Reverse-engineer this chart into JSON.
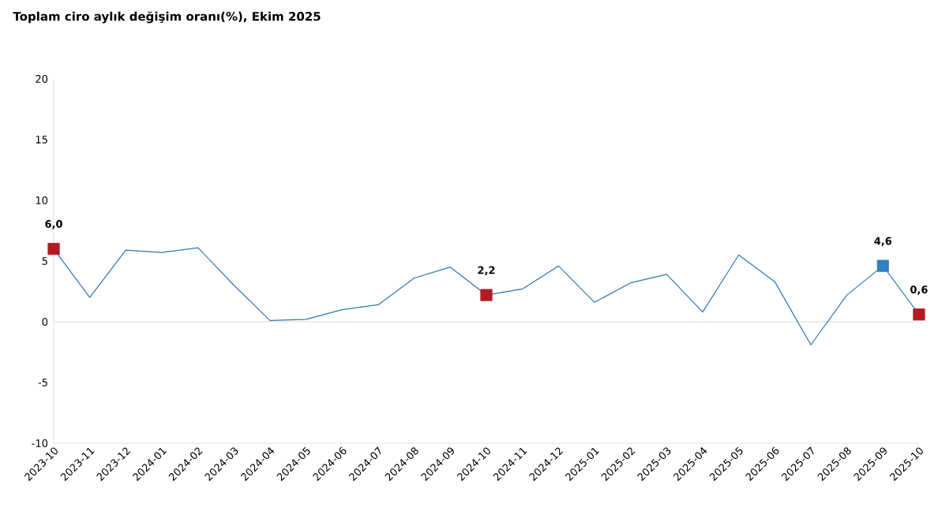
{
  "chart_data": {
    "type": "line",
    "title": "Toplam ciro aylık değişim oranı(%), Ekim 2025",
    "categories": [
      "2023-10",
      "2023-11",
      "2023-12",
      "2024-01",
      "2024-02",
      "2024-03",
      "2024-04",
      "2024-05",
      "2024-06",
      "2024-07",
      "2024-08",
      "2024-09",
      "2024-10",
      "2024-11",
      "2024-12",
      "2025-01",
      "2025-02",
      "2025-03",
      "2025-04",
      "2025-05",
      "2025-06",
      "2025-07",
      "2025-08",
      "2025-09",
      "2025-10"
    ],
    "series": [
      {
        "color": "#2e75b6",
        "values": [
          6.0,
          2.0,
          5.9,
          5.7,
          6.1,
          3.0,
          0.1,
          0.2,
          1.0,
          1.4,
          3.6,
          4.5,
          2.2,
          2.7,
          4.6,
          1.6,
          3.2,
          3.9,
          0.8,
          5.5,
          3.3,
          -1.9,
          2.2,
          4.6,
          0.6
        ],
        "colors": [
          "#b01c24",
          null,
          null,
          null,
          null,
          null,
          null,
          null,
          null,
          null,
          null,
          null,
          "#b01c24",
          null,
          null,
          null,
          null,
          null,
          null,
          null,
          null,
          null,
          null,
          "#3180bf",
          "#b01c24"
        ],
        "value_labels": [
          "6,0",
          null,
          null,
          null,
          null,
          null,
          null,
          null,
          null,
          null,
          null,
          null,
          "2,2",
          null,
          null,
          null,
          null,
          null,
          null,
          null,
          null,
          null,
          null,
          "4,6",
          "0,6"
        ]
      }
    ],
    "line_style": "solid",
    "grid": false,
    "ylim": [
      -10,
      20
    ],
    "yticks": [
      -10,
      -5,
      0,
      5,
      10,
      15,
      20
    ],
    "ref_lines": [
      {
        "axis": "y",
        "value": 0,
        "color": "#d9d9d9"
      }
    ]
  }
}
